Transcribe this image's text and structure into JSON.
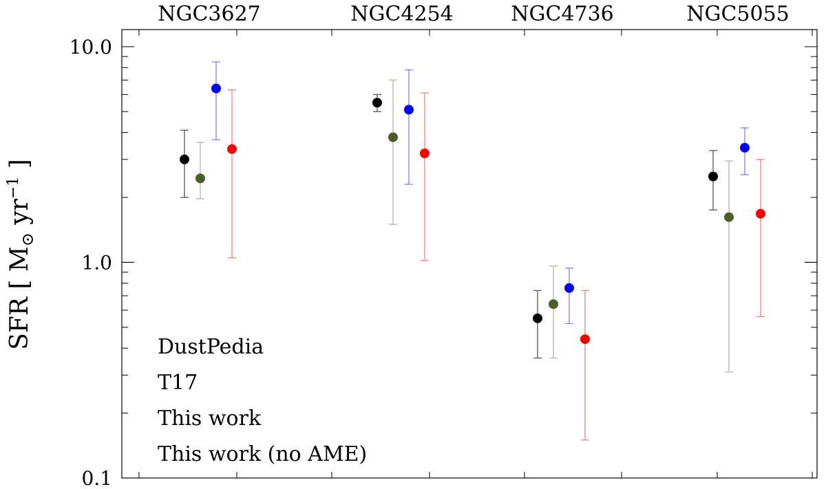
{
  "chart_data": {
    "type": "scatter",
    "yscale": "log",
    "ylim": [
      0.1,
      12
    ],
    "yticks": [
      0.1,
      1.0,
      10.0
    ],
    "ytick_labels": [
      "0.1",
      "1.0",
      "10.0"
    ],
    "categories": [
      "NGC3627",
      "NGC4254",
      "NGC4736",
      "NGC5055"
    ],
    "ylabel": {
      "main": "SFR [ M",
      "sub": "⊙",
      "unit": " yr",
      "sup": "−1",
      "close": " ]"
    },
    "legend_position": "bottom-left",
    "series": [
      {
        "name": "DustPedia",
        "color": "#000000",
        "offset": 0,
        "values": [
          3.0,
          5.5,
          0.55,
          2.5
        ],
        "lower": [
          2.0,
          5.0,
          0.36,
          1.75
        ],
        "upper": [
          4.1,
          6.0,
          0.74,
          3.3
        ]
      },
      {
        "name": "T17",
        "color": "#4a5e2a",
        "offset": 1,
        "values": [
          2.45,
          3.8,
          0.64,
          1.62
        ],
        "lower": [
          1.97,
          1.5,
          0.36,
          0.31
        ],
        "upper": [
          3.6,
          7.0,
          0.96,
          2.95
        ]
      },
      {
        "name": "This work (no AME)",
        "color": "#0000ff",
        "offset": 2,
        "values": [
          6.4,
          5.1,
          0.76,
          3.4
        ],
        "lower": [
          3.7,
          2.3,
          0.52,
          2.55
        ],
        "upper": [
          8.5,
          7.8,
          0.94,
          4.2
        ]
      },
      {
        "name": "This work",
        "color": "#ff0000",
        "offset": 3,
        "values": [
          3.35,
          3.2,
          0.44,
          1.68
        ],
        "lower": [
          1.05,
          1.02,
          0.15,
          0.56
        ],
        "upper": [
          6.3,
          6.1,
          0.74,
          3.0
        ]
      }
    ],
    "legend_order": [
      "DustPedia",
      "T17",
      "This work",
      "This work (no AME)"
    ],
    "errorbar_colors": {
      "DustPedia": "#555555",
      "T17": "#b5b5a2",
      "This work (no AME)": "#8080ff",
      "This work": "#f08080"
    }
  }
}
